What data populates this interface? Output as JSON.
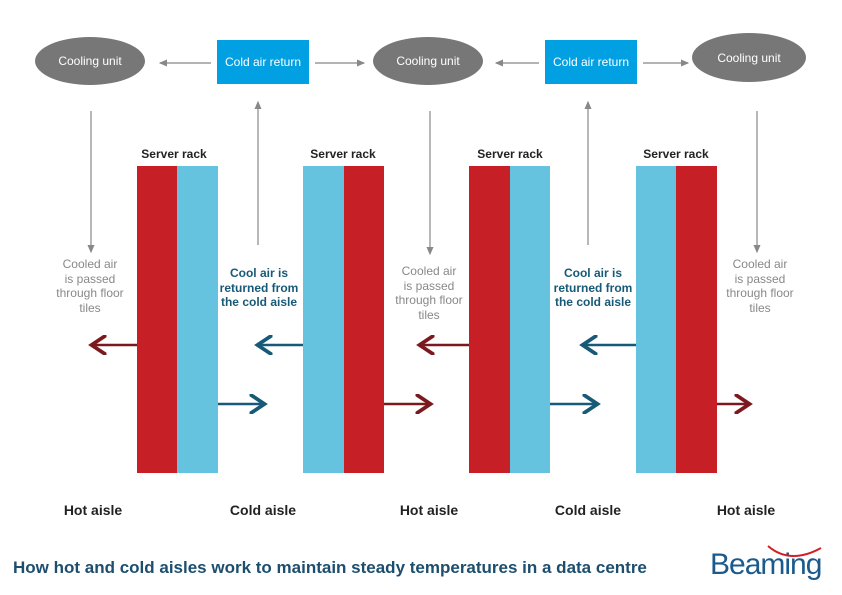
{
  "cooling_unit_label": "Cooling unit",
  "cold_air_return_label": "Cold air return",
  "server_rack_label": "Server rack",
  "cooled_air_text": [
    "Cooled air",
    "is passed",
    "through floor",
    "tiles"
  ],
  "cool_air_return_text": [
    "Cool air is",
    "returned from",
    "the cold aisle"
  ],
  "aisles": [
    "Hot aisle",
    "Cold aisle",
    "Hot aisle",
    "Cold aisle",
    "Hot aisle"
  ],
  "caption": "How hot and cold aisles work to maintain steady temperatures in a data centre",
  "logo_text": "Beaming",
  "colors": {
    "hot": "#c62026",
    "cold": "#66c3df",
    "cooling_unit": "#777777",
    "cold_air_return": "#00a0e3",
    "hot_arrow": "#7a1a1f",
    "cold_arrow": "#175a78",
    "caption": "#1d4e6e",
    "logo": "#1b5a8c"
  }
}
